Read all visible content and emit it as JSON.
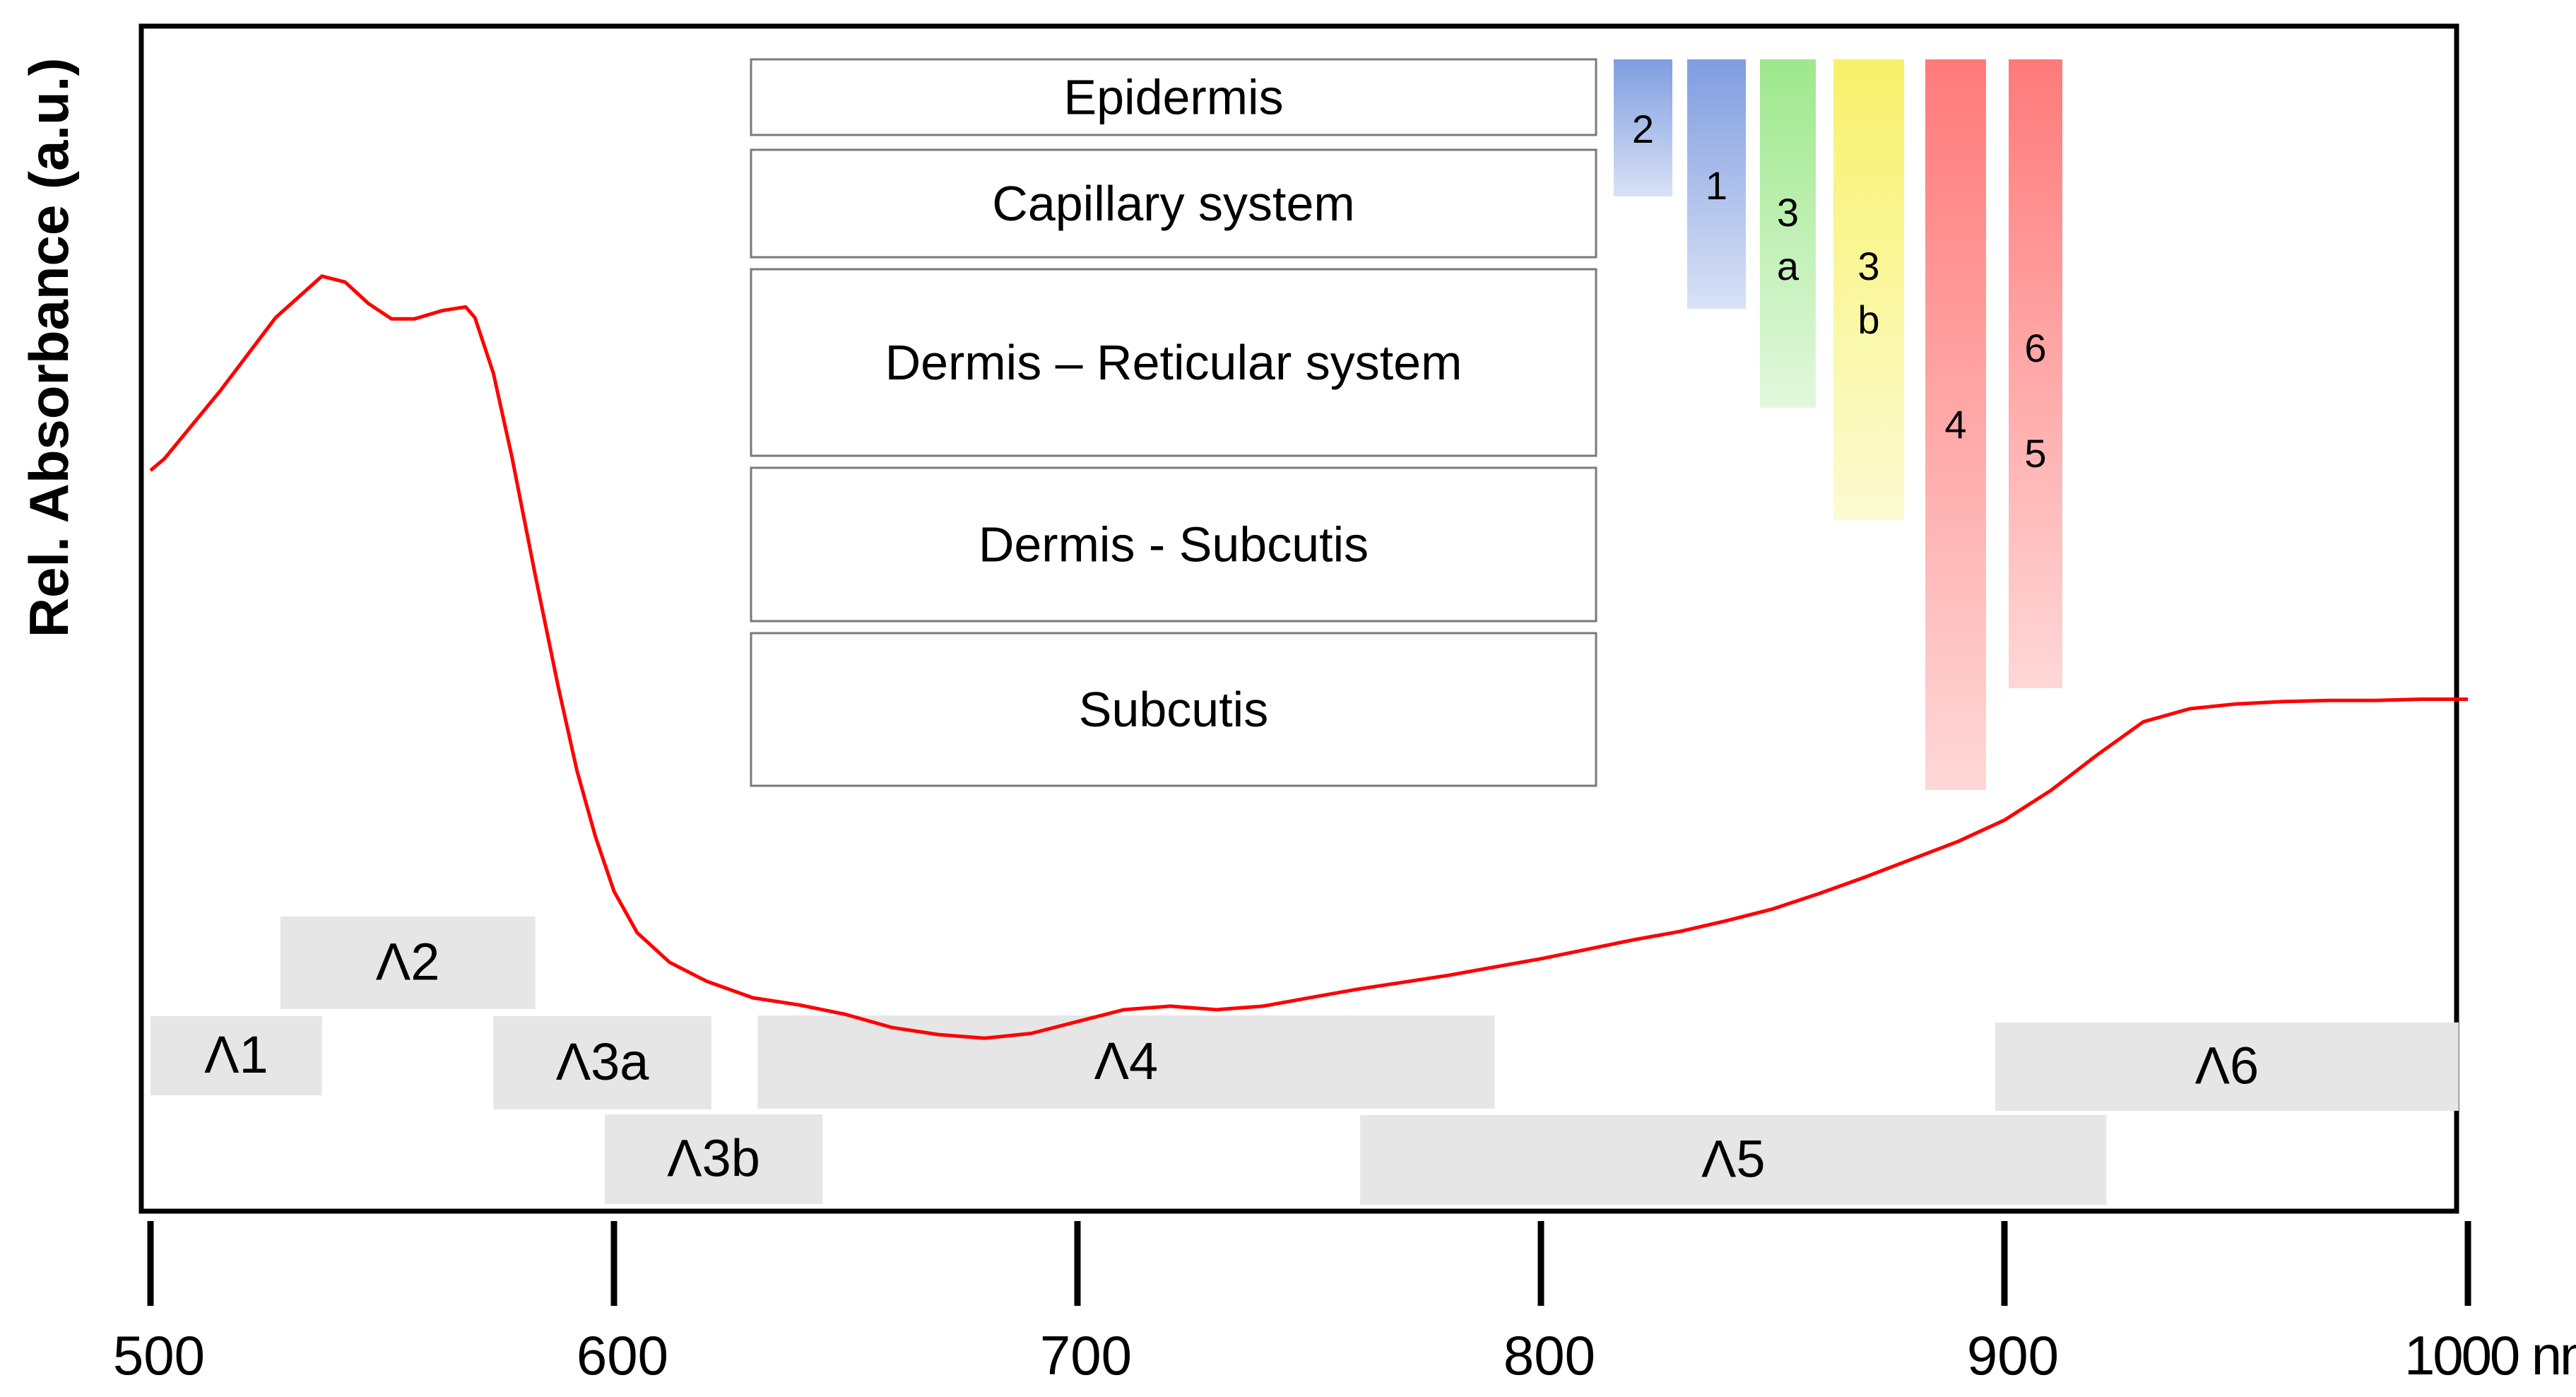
{
  "chart_data": {
    "type": "line",
    "ylabel": "Rel. Absorbance (a.u.)",
    "xlim": [
      500,
      1000
    ],
    "x_unit": "nm",
    "ylim": [
      0,
      100
    ],
    "x_ticks": [
      {
        "value": 500,
        "label": "500"
      },
      {
        "value": 600,
        "label": "600"
      },
      {
        "value": 700,
        "label": "700"
      },
      {
        "value": 800,
        "label": "800"
      },
      {
        "value": 900,
        "label": "900"
      },
      {
        "value": 1000,
        "label": "1000 nm"
      }
    ],
    "curve": {
      "name": "absorbance",
      "color": "#ff0000",
      "x": [
        500,
        503,
        515,
        527,
        537,
        542,
        547,
        552,
        557,
        563,
        568,
        570,
        574,
        578,
        583,
        588,
        592,
        596,
        600,
        605,
        612,
        620,
        630,
        640,
        650,
        660,
        670,
        680,
        690,
        700,
        710,
        720,
        730,
        740,
        750,
        760,
        770,
        780,
        790,
        800,
        810,
        820,
        830,
        840,
        850,
        860,
        870,
        880,
        890,
        900,
        910,
        920,
        930,
        940,
        950,
        960,
        970,
        980,
        990,
        1000
      ],
      "y": [
        62.5,
        63.5,
        69.2,
        75.4,
        78.9,
        78.4,
        76.6,
        75.3,
        75.3,
        76.0,
        76.3,
        75.4,
        70.7,
        63.6,
        53.7,
        44.2,
        37.2,
        31.6,
        27.0,
        23.5,
        21.0,
        19.4,
        18.0,
        17.4,
        16.6,
        15.5,
        14.9,
        14.6,
        15.0,
        16.0,
        17.0,
        17.3,
        17.0,
        17.3,
        18.0,
        18.7,
        19.3,
        19.9,
        20.6,
        21.3,
        22.1,
        22.9,
        23.6,
        24.5,
        25.5,
        26.8,
        28.2,
        29.7,
        31.2,
        33.0,
        35.5,
        38.5,
        41.3,
        42.4,
        42.8,
        43.0,
        43.1,
        43.1,
        43.2,
        43.2
      ]
    },
    "layers": [
      {
        "label": "Epidermis"
      },
      {
        "label": "Capillary system"
      },
      {
        "label": "Dermis – Reticular system"
      },
      {
        "label": "Dermis - Subcutis"
      },
      {
        "label": "Subcutis"
      }
    ],
    "penetration_bars": [
      {
        "label": "2",
        "color": "#7f9de0"
      },
      {
        "label": "1",
        "color": "#7f9de0"
      },
      {
        "label": "3\na",
        "color": "#9ee88c"
      },
      {
        "label": "3\nb",
        "color": "#f7f26a"
      },
      {
        "label": "4",
        "color": "#ff7a7a"
      },
      {
        "label": "6\n\n5",
        "color": "#ff7a7a"
      }
    ],
    "bands": [
      {
        "label": "Λ1",
        "x_start": 500,
        "x_end": 537
      },
      {
        "label": "Λ2",
        "x_start": 528,
        "x_end": 583
      },
      {
        "label": "Λ3a",
        "x_start": 574,
        "x_end": 621
      },
      {
        "label": "Λ3b",
        "x_start": 598,
        "x_end": 645
      },
      {
        "label": "Λ4",
        "x_start": 631,
        "x_end": 790
      },
      {
        "label": "Λ5",
        "x_start": 761,
        "x_end": 922
      },
      {
        "label": "Λ6",
        "x_start": 898,
        "x_end": 998
      }
    ]
  }
}
